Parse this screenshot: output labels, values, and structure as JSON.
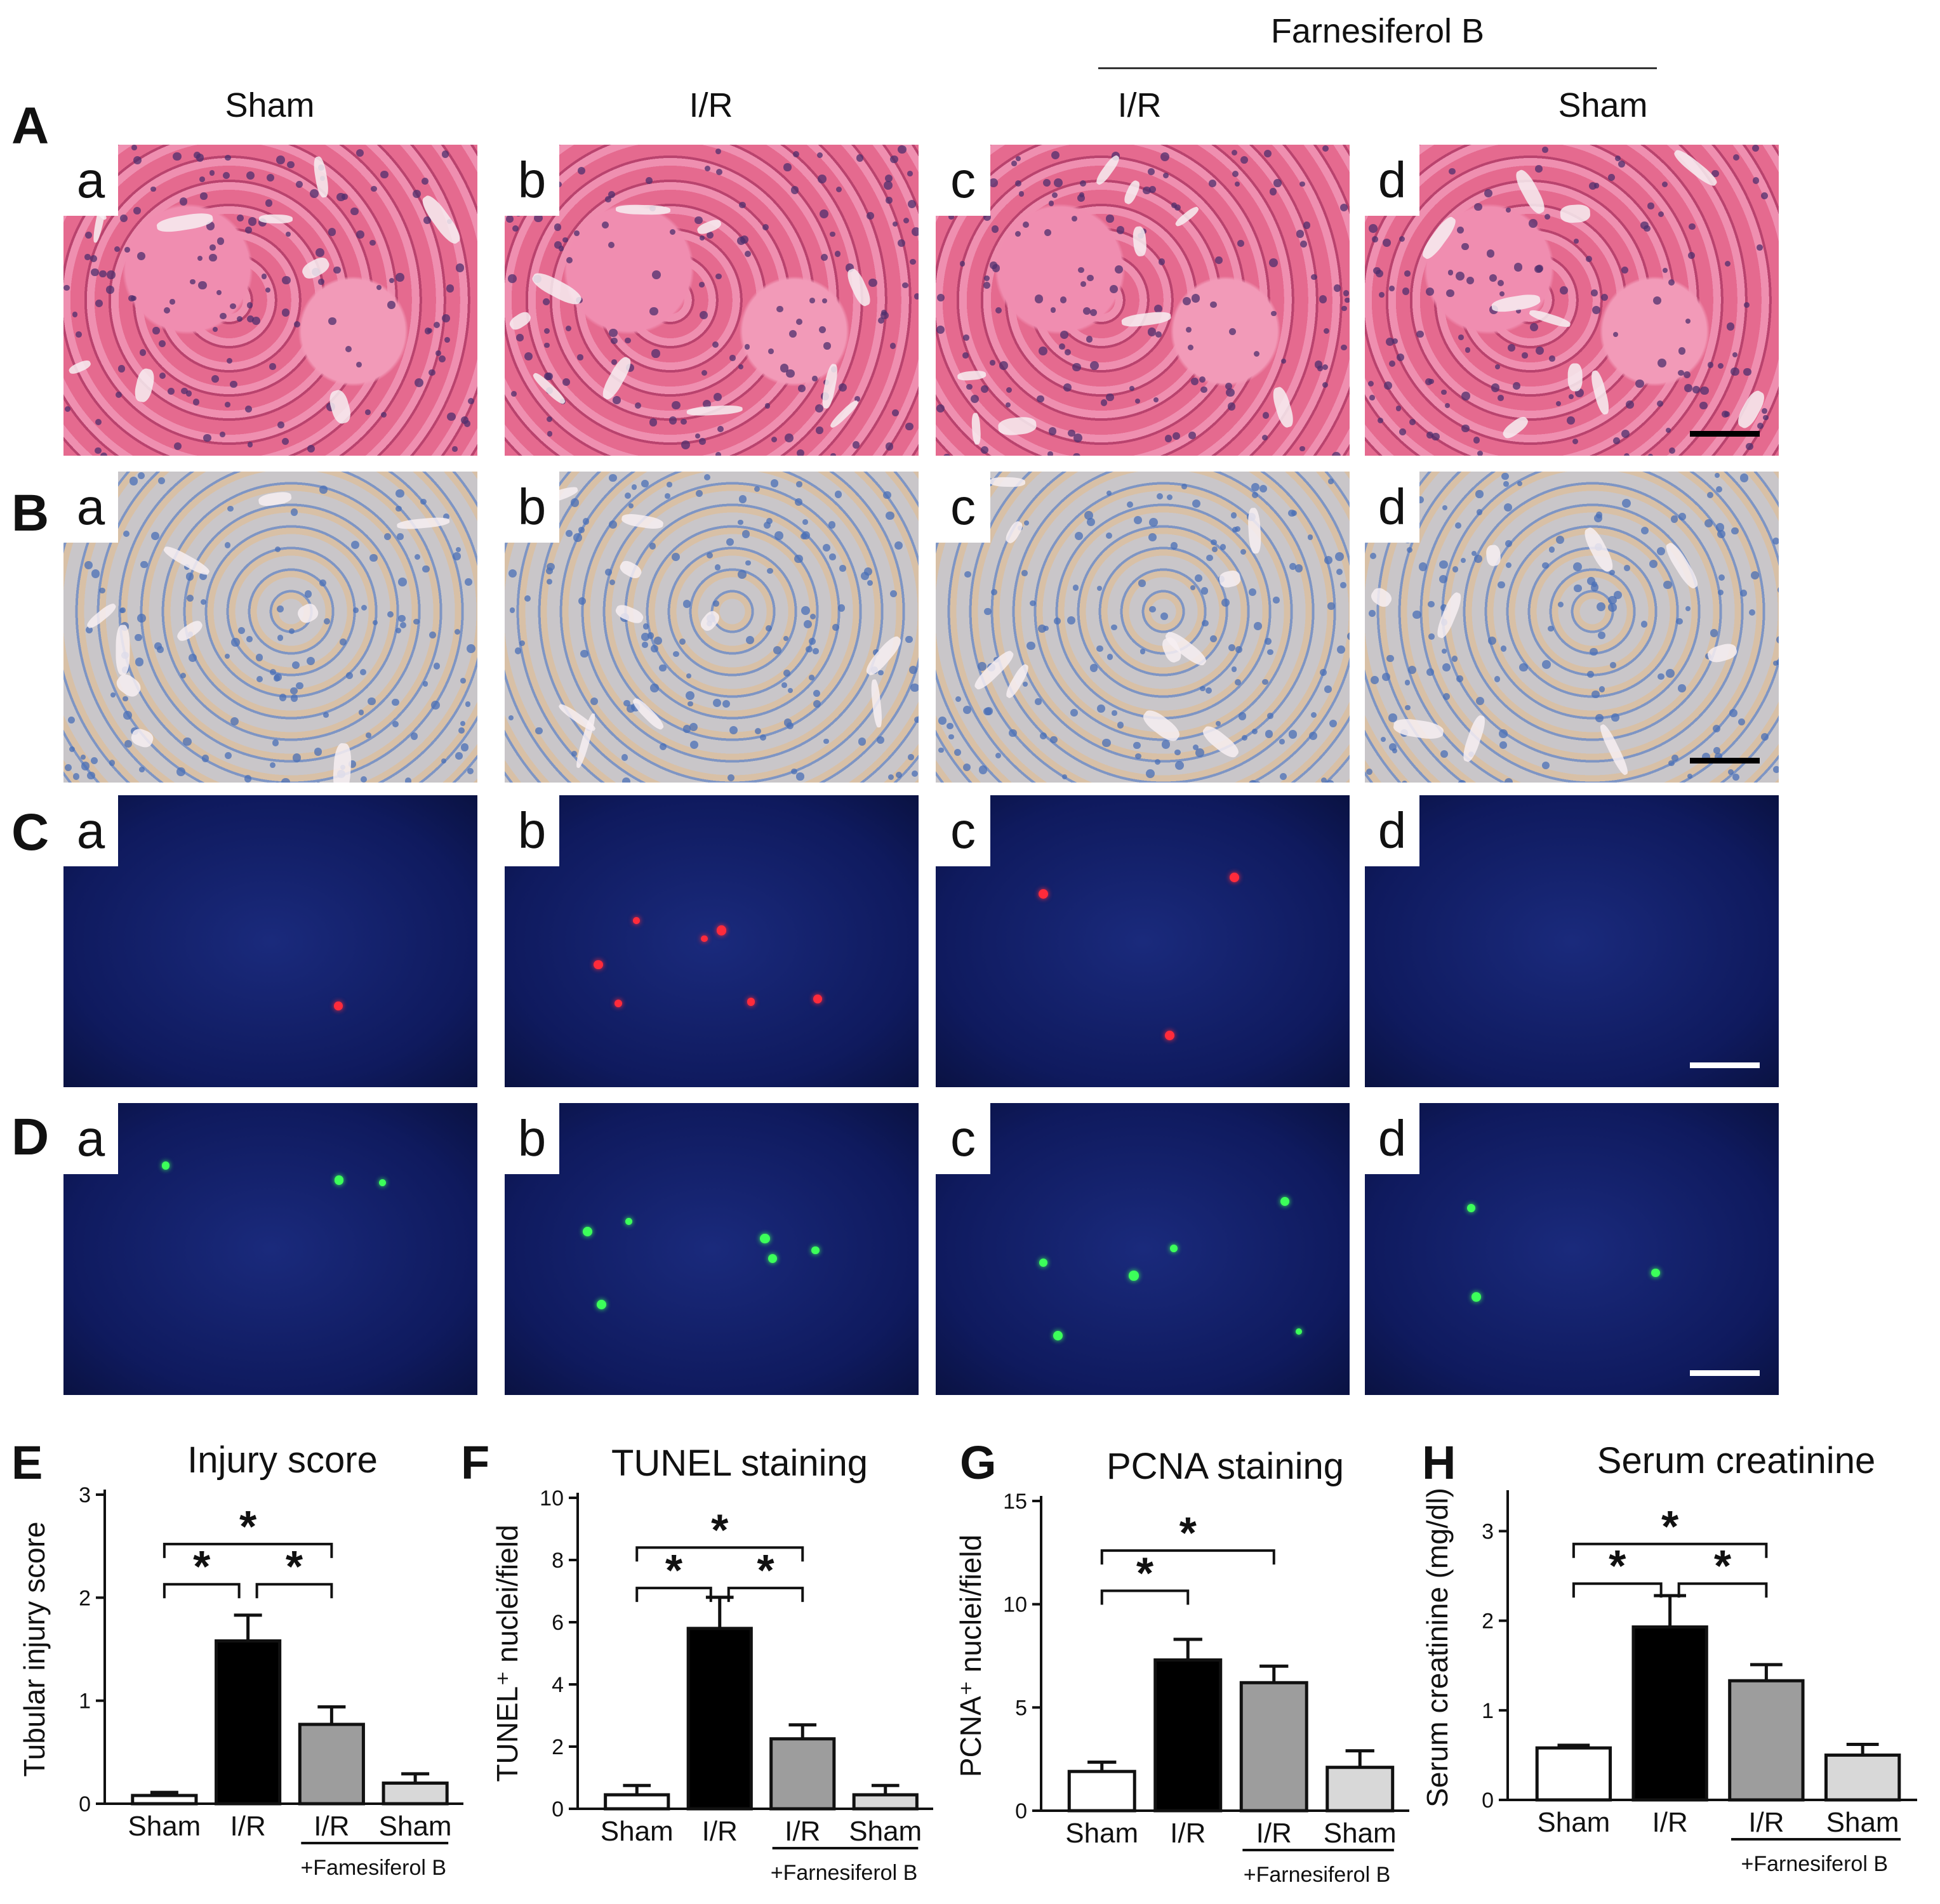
{
  "headers": {
    "treatment": "Farnesiferol B",
    "columns": [
      "Sham",
      "I/R",
      "I/R",
      "Sham"
    ]
  },
  "rows": [
    {
      "letter": "A",
      "stain": "he"
    },
    {
      "letter": "B",
      "stain": "ihc"
    },
    {
      "letter": "C",
      "stain": "tunel"
    },
    {
      "letter": "D",
      "stain": "pcna"
    }
  ],
  "sublabels": [
    "a",
    "b",
    "c",
    "d"
  ],
  "colors": {
    "bar_fills": [
      "#ffffff",
      "#000000",
      "#9d9d9d",
      "#d8d8d8"
    ],
    "he_bg": "#e56a8f",
    "ihc_bg": "#c9c6c9",
    "fluor_bg": "#0f1a5e"
  },
  "chart_data": [
    {
      "letter": "E",
      "type": "bar",
      "title": "Injury score",
      "ylabel": "Tubular injury score",
      "categories": [
        "Sham",
        "I/R",
        "I/R",
        "Sham"
      ],
      "group_label": "+Famesiferol B",
      "values": [
        0.08,
        1.58,
        0.77,
        0.2
      ],
      "errors": [
        0.03,
        0.25,
        0.17,
        0.09
      ],
      "ylim": [
        0,
        3
      ],
      "yticks": [
        "0",
        "1",
        "2",
        "3"
      ],
      "brackets": [
        {
          "from": 0,
          "to": 1,
          "level": 0,
          "label": "*"
        },
        {
          "from": 1,
          "to": 2,
          "level": 0,
          "label": "*"
        },
        {
          "from": 0,
          "to": 2,
          "level": 1,
          "label": "*"
        }
      ]
    },
    {
      "letter": "F",
      "type": "bar",
      "title": "TUNEL staining",
      "ylabel": "TUNEL⁺ nuclei/field",
      "categories": [
        "Sham",
        "I/R",
        "I/R",
        "Sham"
      ],
      "group_label": "+Farnesiferol B",
      "values": [
        0.45,
        5.8,
        2.25,
        0.45
      ],
      "errors": [
        0.3,
        1.0,
        0.45,
        0.3
      ],
      "ylim": [
        0,
        10
      ],
      "yticks": [
        "0",
        "2",
        "4",
        "6",
        "8",
        "10"
      ],
      "brackets": [
        {
          "from": 0,
          "to": 1,
          "level": 0,
          "label": "*"
        },
        {
          "from": 1,
          "to": 2,
          "level": 0,
          "label": "*"
        },
        {
          "from": 0,
          "to": 2,
          "level": 1,
          "label": "*"
        }
      ]
    },
    {
      "letter": "G",
      "type": "bar",
      "title": "PCNA staining",
      "ylabel": "PCNA⁺ nuclei/field",
      "categories": [
        "Sham",
        "I/R",
        "I/R",
        "Sham"
      ],
      "group_label": "+Farnesiferol B",
      "values": [
        1.9,
        7.3,
        6.2,
        2.1
      ],
      "errors": [
        0.45,
        1.0,
        0.8,
        0.8
      ],
      "ylim": [
        0,
        15
      ],
      "yticks": [
        "0",
        "5",
        "10",
        "15"
      ],
      "brackets": [
        {
          "from": 0,
          "to": 1,
          "level": 0,
          "label": "*"
        },
        {
          "from": 0,
          "to": 2,
          "level": 1,
          "label": "*"
        }
      ]
    },
    {
      "letter": "H",
      "type": "bar",
      "title": "Serum creatinine",
      "ylabel": "Serum creatinine (mg/dl)",
      "categories": [
        "Sham",
        "I/R",
        "I/R",
        "Sham"
      ],
      "group_label": "+Farnesiferol B",
      "values": [
        0.58,
        1.93,
        1.33,
        0.5
      ],
      "errors": [
        0.03,
        0.35,
        0.18,
        0.12
      ],
      "ylim": [
        0,
        3.4
      ],
      "yticks": [
        "0",
        "1",
        "2",
        "3"
      ],
      "brackets": [
        {
          "from": 0,
          "to": 1,
          "level": 0,
          "label": "*"
        },
        {
          "from": 1,
          "to": 2,
          "level": 0,
          "label": "*"
        },
        {
          "from": 0,
          "to": 2,
          "level": 1,
          "label": "*"
        }
      ]
    }
  ]
}
